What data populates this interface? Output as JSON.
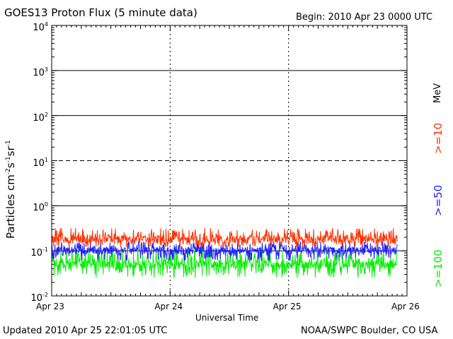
{
  "chart_data": {
    "type": "line",
    "title": "GOES13 Proton Flux (5 minute data)",
    "begin": "Begin: 2010 Apr 23 0000 UTC",
    "xlabel": "Universal Time",
    "ylabel_parts": [
      "Particles cm",
      "-2",
      "s",
      "-1",
      "sr",
      "-1"
    ],
    "y_scale": "log",
    "ylim": [
      0.01,
      10000
    ],
    "y_ticks": [
      {
        "base": "10",
        "exp": "4"
      },
      {
        "base": "10",
        "exp": "3"
      },
      {
        "base": "10",
        "exp": "2"
      },
      {
        "base": "10",
        "exp": "1"
      },
      {
        "base": "10",
        "exp": "0"
      },
      {
        "base": "10",
        "exp": "-1"
      },
      {
        "base": "10",
        "exp": "-2"
      }
    ],
    "x_ticks": [
      "Apr 23",
      "Apr 24",
      "Apr 25",
      "Apr 26"
    ],
    "xlim": [
      "2010-04-23",
      "2010-04-26"
    ],
    "unit": "MeV",
    "series": [
      {
        "name": ">=10",
        "color": "#ff3000",
        "typical_value": 0.18,
        "range": [
          0.12,
          0.32
        ],
        "data_end": "2010-04-25 22:00"
      },
      {
        "name": ">=50",
        "color": "#2020ff",
        "typical_value": 0.1,
        "range": [
          0.06,
          0.16
        ],
        "data_end": "2010-04-25 22:00"
      },
      {
        "name": ">=100",
        "color": "#00ee00",
        "typical_value": 0.05,
        "range": [
          0.025,
          0.11
        ],
        "data_end": "2010-04-25 22:00"
      }
    ],
    "grid": {
      "solid_lines_at": [
        1000,
        100,
        1,
        0.1
      ],
      "dashed_lines_at": [
        10
      ]
    },
    "legend_placement": "right, vertical"
  },
  "footer": {
    "updated": "Updated 2010 Apr 25 22:01:05 UTC",
    "source": "NOAA/SWPC Boulder, CO USA"
  }
}
